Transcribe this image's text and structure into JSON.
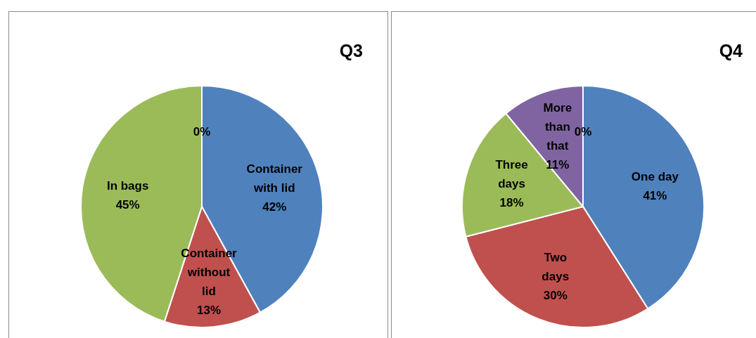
{
  "chart_data": [
    {
      "type": "pie",
      "title": "Q3",
      "categories": [
        "Container with lid",
        "Container without lid",
        "In bags",
        null
      ],
      "values": [
        42,
        13,
        45,
        0
      ],
      "colors": [
        "#4f81bd",
        "#c0504d",
        "#9bbb59",
        "#8064a2"
      ],
      "value_labels": [
        "42%",
        "13%",
        "45%",
        "0%"
      ]
    },
    {
      "type": "pie",
      "title": "Q4",
      "categories": [
        "One day",
        "Two days",
        "Three days",
        "More than that",
        null
      ],
      "values": [
        41,
        30,
        18,
        11,
        0
      ],
      "colors": [
        "#4f81bd",
        "#c0504d",
        "#9bbb59",
        "#8064a2",
        "#4bacc6"
      ],
      "value_labels": [
        "41%",
        "30%",
        "18%",
        "11%",
        "0%"
      ]
    }
  ]
}
